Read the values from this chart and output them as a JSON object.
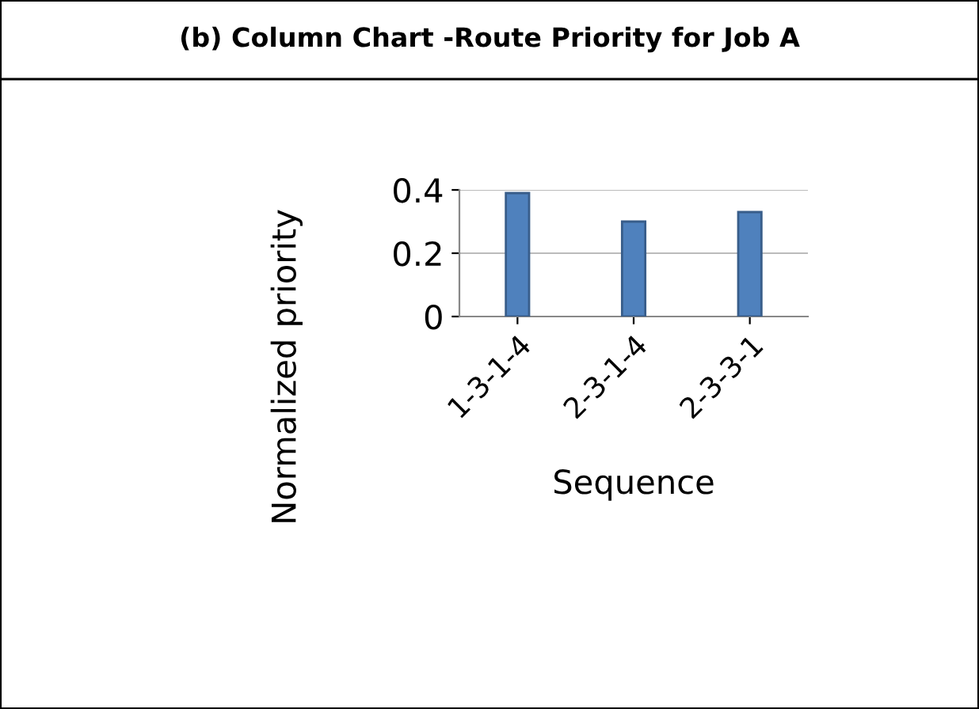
{
  "chart_data": {
    "type": "bar",
    "title": "(b) Column Chart -Route Priority for Job A",
    "xlabel": "Sequence",
    "ylabel": "Normalized priority",
    "categories": [
      "1-3-1-4",
      "2-3-1-4",
      "2-3-3-1"
    ],
    "values": [
      0.39,
      0.3,
      0.33
    ],
    "color": "#4f81bd",
    "ylim": [
      0,
      0.4
    ],
    "yticks": [
      0,
      0.2,
      0.4
    ],
    "grid": "y"
  }
}
